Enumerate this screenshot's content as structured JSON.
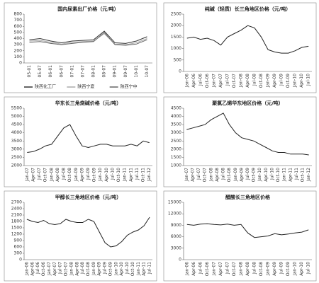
{
  "chart_data": [
    {
      "type": "line",
      "title": "国内尿素出厂价格（元/吨）",
      "categories": [
        "05-01",
        "05-07",
        "06-01",
        "06-07",
        "07-01",
        "07-07",
        "08-01",
        "08-07",
        "09-01",
        "09-07",
        "10-01",
        "10-07"
      ],
      "series": [
        {
          "name": "陕西化工厂",
          "color": "#333333",
          "values": [
            380,
            400,
            360,
            330,
            360,
            370,
            380,
            520,
            330,
            320,
            360,
            430
          ]
        },
        {
          "name": "陕西宁夏",
          "color": "#aaaaaa",
          "values": [
            360,
            370,
            340,
            310,
            340,
            350,
            360,
            480,
            310,
            300,
            330,
            400
          ]
        },
        {
          "name": "陕西宁中",
          "color": "#666666",
          "values": [
            340,
            350,
            320,
            300,
            320,
            340,
            350,
            500,
            300,
            290,
            310,
            380
          ]
        }
      ],
      "ylim": [
        0,
        800
      ],
      "yticks": [
        0,
        100,
        200,
        300,
        400,
        500,
        600,
        700,
        800
      ],
      "legend": "bottom"
    },
    {
      "type": "line",
      "title": "纯碱（轻质）长三角地区价格（元/吨）",
      "categories": [
        "Jan-06",
        "Apr-06",
        "Jul-06",
        "Oct-06",
        "Jan-07",
        "Apr-07",
        "Jul-07",
        "Oct-07",
        "Jan-08",
        "Apr-08",
        "Jul-08",
        "Oct-08",
        "Jan-09",
        "Apr-09",
        "Jul-09",
        "Oct-09",
        "Jan-10",
        "Apr-10",
        "Jul-10"
      ],
      "series": [
        {
          "color": "#222222",
          "values": [
            1450,
            1500,
            1400,
            1450,
            1350,
            1150,
            1500,
            1650,
            1800,
            2000,
            1900,
            1500,
            950,
            850,
            800,
            800,
            900,
            1050,
            1100
          ]
        }
      ],
      "ylim": [
        0,
        2500
      ],
      "yticks": [
        0,
        500,
        1000,
        1500,
        2000,
        2500
      ]
    },
    {
      "type": "line",
      "title": "华东长三角烧碱价格（元/吨）",
      "categories": [
        "Jan-07",
        "Apr-07",
        "Jul-07",
        "Oct-07",
        "Jan-08",
        "Apr-08",
        "Jul-08",
        "Oct-08",
        "Jan-09",
        "Apr-09",
        "Jul-09",
        "Oct-09",
        "Jan-10",
        "Apr-10",
        "Jul-10",
        "Oct-10",
        "Jan-11",
        "Apr-11",
        "Jul-11",
        "Oct-11",
        "Jan-12"
      ],
      "series": [
        {
          "color": "#222222",
          "values": [
            2800,
            2850,
            3000,
            3200,
            3300,
            3800,
            4300,
            4500,
            3800,
            3200,
            3100,
            3200,
            3300,
            3300,
            3200,
            3200,
            3200,
            3300,
            3200,
            3500,
            3400
          ]
        }
      ],
      "ylim": [
        2000,
        5500
      ],
      "yticks": [
        2000,
        2500,
        3000,
        3500,
        4000,
        4500,
        5000,
        5500
      ]
    },
    {
      "type": "line",
      "title": "聚氯乙烯华东地区价格（元/吨）",
      "categories": [
        "Jan-07",
        "Apr-07",
        "Jul-07",
        "Oct-07",
        "Jan-08",
        "Apr-08",
        "Jul-08",
        "Oct-08",
        "Jan-09",
        "Apr-09",
        "Jul-09",
        "Oct-09",
        "Jan-10",
        "Apr-10",
        "Jul-10",
        "Oct-10",
        "Jan-11",
        "Apr-11",
        "Jul-11",
        "Oct-11",
        "Jan-12"
      ],
      "series": [
        {
          "color": "#222222",
          "values": [
            3200,
            3300,
            3400,
            3500,
            3800,
            4000,
            4200,
            3500,
            3000,
            2700,
            2600,
            2500,
            2300,
            2100,
            1900,
            1800,
            1800,
            1700,
            1700,
            1700,
            1650
          ]
        }
      ],
      "ylim": [
        1000,
        4500
      ],
      "yticks": [
        1000,
        1500,
        2000,
        2500,
        3000,
        3500,
        4000,
        4500
      ]
    },
    {
      "type": "line",
      "title": "甲醇长三角地区价格（元/吨）",
      "categories": [
        "Jan-06",
        "Apr-06",
        "Jul-06",
        "Oct-06",
        "Jan-07",
        "Apr-07",
        "Jul-07",
        "Oct-07",
        "Jan-08",
        "Apr-08",
        "Jul-08",
        "Oct-08",
        "Jan-09",
        "Apr-09",
        "Jul-09",
        "Oct-09",
        "Jan-10",
        "Apr-10",
        "Jul-10",
        "Oct-10",
        "Jan-11",
        "Apr-11",
        "Jul-11"
      ],
      "series": [
        {
          "color": "#222222",
          "values": [
            1900,
            1800,
            1750,
            1850,
            1700,
            1650,
            1700,
            1900,
            1800,
            1750,
            1750,
            1900,
            1800,
            1300,
            800,
            600,
            650,
            850,
            1150,
            1300,
            1400,
            1600,
            2000
          ]
        }
      ],
      "ylim": [
        0,
        2700
      ],
      "yticks": [
        0,
        300,
        600,
        900,
        1200,
        1500,
        1800,
        2100,
        2400,
        2700
      ]
    },
    {
      "type": "line",
      "title": "醋酸长三角地区价格",
      "categories": [
        "Jan-06",
        "Apr-06",
        "Jul-06",
        "Oct-06",
        "Jan-07",
        "Apr-07",
        "Jul-07",
        "Oct-07",
        "Jan-08",
        "Apr-08",
        "Jul-08",
        "Oct-08",
        "Jan-09",
        "Apr-09",
        "Jul-09",
        "Oct-09",
        "Jan-10",
        "Apr-10",
        "Jul-10"
      ],
      "series": [
        {
          "color": "#222222",
          "values": [
            9200,
            9000,
            9300,
            9400,
            9200,
            9100,
            9300,
            9000,
            9200,
            7000,
            5800,
            6000,
            6200,
            6800,
            6500,
            6700,
            7000,
            7200,
            7800
          ]
        }
      ],
      "ylim": [
        0,
        15000
      ],
      "yticks": [
        0,
        3000,
        6000,
        9000,
        12000,
        15000
      ]
    }
  ]
}
